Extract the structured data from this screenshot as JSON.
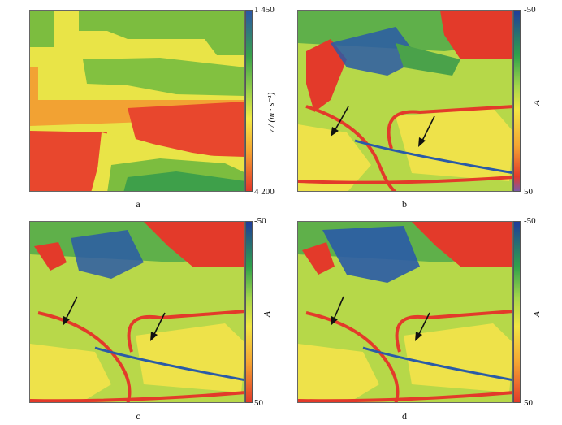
{
  "panels": [
    {
      "id": "a",
      "caption": "a"
    },
    {
      "id": "b",
      "caption": "b"
    },
    {
      "id": "c",
      "caption": "c"
    },
    {
      "id": "d",
      "caption": "d"
    }
  ],
  "colorbars": {
    "a": {
      "top": "1 450",
      "bottom": "4 200",
      "label": "v / (m · s⁻¹)",
      "colors": [
        "#2b56a8",
        "#39a24a",
        "#9bd14a",
        "#f3ea46",
        "#f5a431",
        "#e4362a"
      ]
    },
    "b": {
      "top": "-50",
      "bottom": "50",
      "label": "A",
      "colors": [
        "#1f3c9c",
        "#2fa24a",
        "#a4d64a",
        "#f2e544",
        "#f5a431",
        "#e23a2a",
        "#7b5aa8"
      ]
    },
    "c": {
      "top": "-50",
      "bottom": "50",
      "label": "A",
      "colors": [
        "#1f3c9c",
        "#2fa24a",
        "#a4d64a",
        "#f2e544",
        "#f5a431",
        "#e23a2a"
      ]
    },
    "d": {
      "top": "-50",
      "bottom": "50",
      "label": "A",
      "colors": [
        "#1f3c9c",
        "#2fa24a",
        "#a4d64a",
        "#f2e544",
        "#f5a431",
        "#e23a2a"
      ]
    }
  }
}
